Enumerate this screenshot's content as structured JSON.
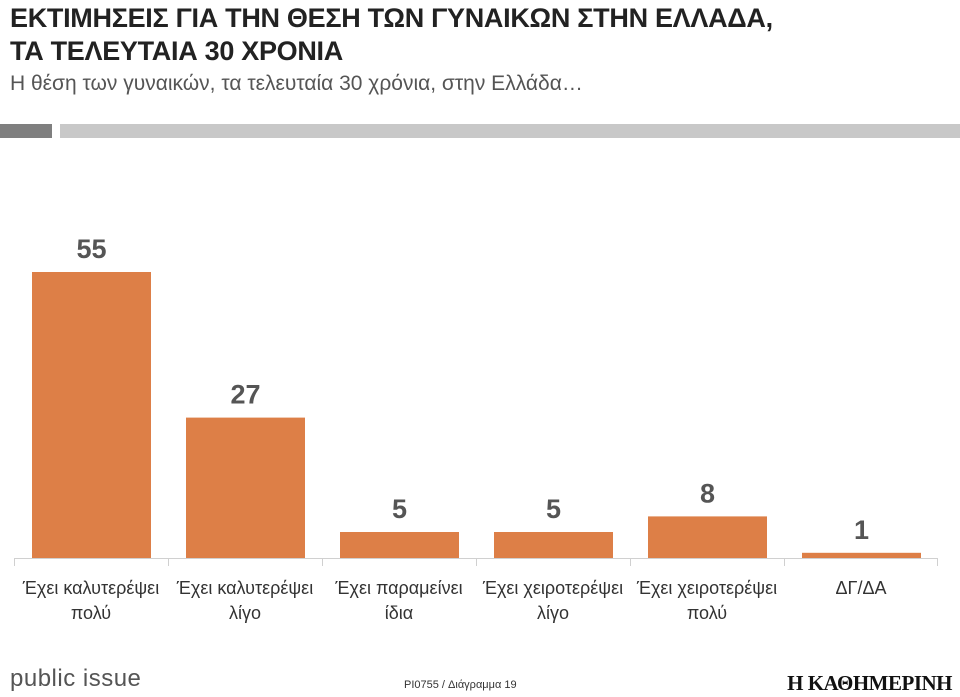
{
  "header": {
    "title_line1": "ΕΚΤΙΜΗΣΕΙΣ ΓΙΑ ΤΗΝ ΘΕΣΗ ΤΩΝ ΓΥΝΑΙΚΩΝ ΣΤΗΝ ΕΛΛΑΔΑ,",
    "title_line2": "ΤΑ ΤΕΛΕΥΤΑΙΑ 30 ΧΡΟΝΙΑ",
    "subtitle": "Η θέση των γυναικών, τα τελευταία 30 χρόνια, στην Ελλάδα…"
  },
  "colors": {
    "bar": "#dd7f47",
    "header_bar_dark": "#7f7f7f",
    "header_bar_light": "#c8c8c8"
  },
  "chart_data": {
    "type": "bar",
    "categories": [
      [
        "Έχει καλυτερέψει",
        "πολύ"
      ],
      [
        "Έχει καλυτερέψει",
        "λίγο"
      ],
      [
        "Έχει παραμείνει",
        "ίδια"
      ],
      [
        "Έχει χειροτερέψει",
        "λίγο"
      ],
      [
        "Έχει χειροτερέψει",
        "πολύ"
      ],
      [
        "ΔΓ/ΔΑ"
      ]
    ],
    "values": [
      55,
      27,
      5,
      5,
      8,
      1
    ],
    "ylim": [
      0,
      60
    ],
    "grid": false,
    "legend": "none",
    "data_labels": true
  },
  "footer": {
    "logo": "public issue",
    "code": "PI0755 / Διάγραμμα 19",
    "brand": "Η ΚΑΘΗΜΕΡΙΝΗ"
  }
}
